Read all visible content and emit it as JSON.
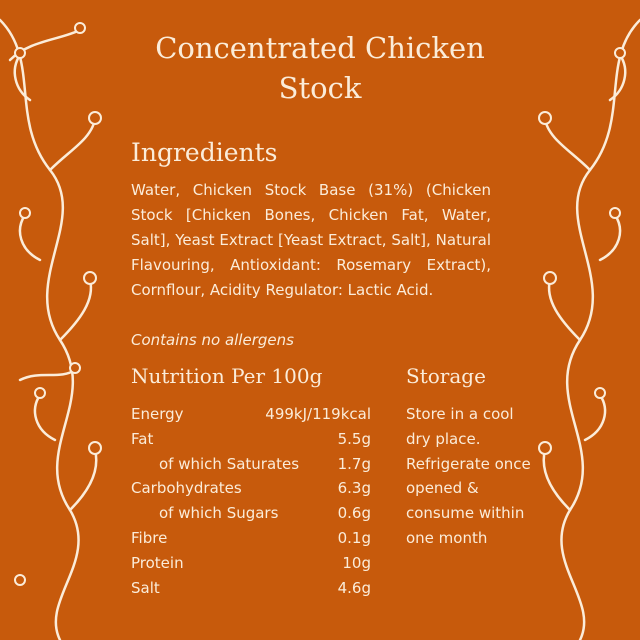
{
  "title": "Concentrated Chicken Stock",
  "ingredients": {
    "heading": "Ingredients",
    "text": "Water, Chicken Stock Base (31%) (Chicken Stock [Chicken Bones, Chicken Fat, Water, Salt], Yeast Extract [Yeast Extract, Salt], Natural Flavouring, Antioxidant: Rosemary Extract), Cornflour, Acidity Regulator: Lactic Acid.",
    "allergens": "Contains no allergens"
  },
  "nutrition": {
    "heading": "Nutrition Per 100g",
    "rows": [
      {
        "name": "Energy",
        "value": "499kJ/119kcal",
        "sub": false
      },
      {
        "name": "Fat",
        "value": "5.5g",
        "sub": false
      },
      {
        "name": "of which Saturates",
        "value": "1.7g",
        "sub": true
      },
      {
        "name": "Carbohydrates",
        "value": "6.3g",
        "sub": false
      },
      {
        "name": "of which Sugars",
        "value": "0.6g",
        "sub": true
      },
      {
        "name": "Fibre",
        "value": "0.1g",
        "sub": false
      },
      {
        "name": "Protein",
        "value": "10g",
        "sub": false
      },
      {
        "name": "Salt",
        "value": "4.6g",
        "sub": false
      }
    ]
  },
  "storage": {
    "heading": "Storage",
    "text": "Store in a cool dry place. Refrigerate once opened & consume within one month"
  },
  "colors": {
    "background": "#c75a0c",
    "text": "#fbecd9"
  }
}
